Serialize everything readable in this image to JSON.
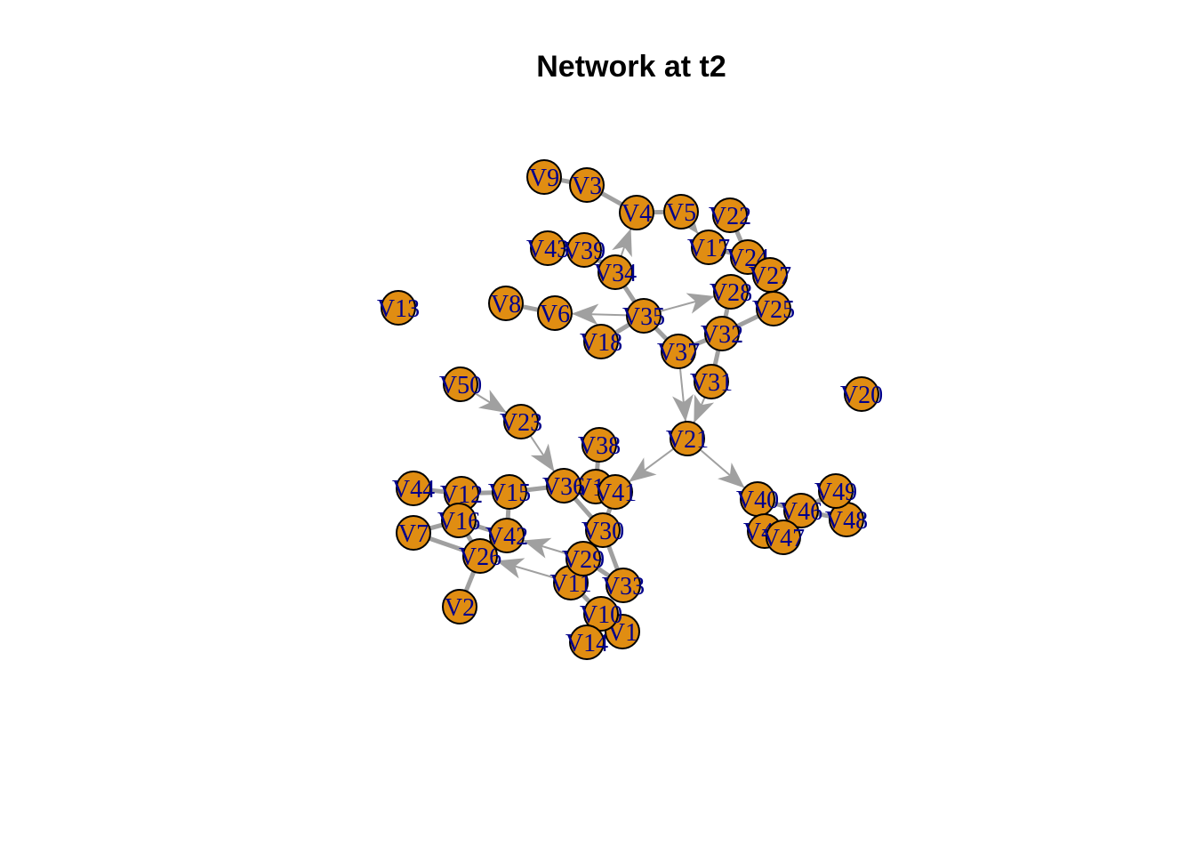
{
  "title": "Network at t2",
  "colors": {
    "node_fill": "#e08d12",
    "node_stroke": "#000000",
    "label": "#00008b",
    "edge": "#a0a0a0"
  },
  "nodes": [
    "V1",
    "V2",
    "V3",
    "V4",
    "V5",
    "V6",
    "V7",
    "V8",
    "V9",
    "V10",
    "V11",
    "V12",
    "V13",
    "V14",
    "V15",
    "V16",
    "V17",
    "V18",
    "V19",
    "V20",
    "V21",
    "V22",
    "V23",
    "V24",
    "V25",
    "V26",
    "V27",
    "V28",
    "V29",
    "V30",
    "V31",
    "V32",
    "V33",
    "V34",
    "V35",
    "V36",
    "V37",
    "V38",
    "V39",
    "V40",
    "V41",
    "V42",
    "V43",
    "V44",
    "V45",
    "V46",
    "V47",
    "V48",
    "V49",
    "V50"
  ],
  "edges": [
    [
      "V9",
      "V3",
      false
    ],
    [
      "V3",
      "V4",
      false
    ],
    [
      "V4",
      "V5",
      false
    ],
    [
      "V5",
      "V17",
      true
    ],
    [
      "V17",
      "V24",
      false
    ],
    [
      "V22",
      "V24",
      false
    ],
    [
      "V24",
      "V27",
      false
    ],
    [
      "V27",
      "V25",
      false
    ],
    [
      "V34",
      "V4",
      true
    ],
    [
      "V34",
      "V35",
      false
    ],
    [
      "V39",
      "V34",
      false
    ],
    [
      "V43",
      "V39",
      false
    ],
    [
      "V35",
      "V6",
      true
    ],
    [
      "V8",
      "V6",
      false
    ],
    [
      "V18",
      "V35",
      false
    ],
    [
      "V35",
      "V28",
      true
    ],
    [
      "V28",
      "V32",
      false
    ],
    [
      "V32",
      "V25",
      false
    ],
    [
      "V35",
      "V37",
      false
    ],
    [
      "V37",
      "V32",
      false
    ],
    [
      "V37",
      "V21",
      true
    ],
    [
      "V31",
      "V21",
      true
    ],
    [
      "V32",
      "V31",
      false
    ],
    [
      "V21",
      "V40",
      true
    ],
    [
      "V21",
      "V41",
      true
    ],
    [
      "V50",
      "V23",
      true
    ],
    [
      "V23",
      "V36",
      true
    ],
    [
      "V38",
      "V19",
      false
    ],
    [
      "V36",
      "V19",
      false
    ],
    [
      "V19",
      "V41",
      false
    ],
    [
      "V41",
      "V30",
      false
    ],
    [
      "V36",
      "V30",
      false
    ],
    [
      "V15",
      "V36",
      false
    ],
    [
      "V44",
      "V12",
      false
    ],
    [
      "V12",
      "V15",
      false
    ],
    [
      "V12",
      "V16",
      false
    ],
    [
      "V16",
      "V42",
      false
    ],
    [
      "V15",
      "V42",
      false
    ],
    [
      "V7",
      "V16",
      false
    ],
    [
      "V7",
      "V26",
      false
    ],
    [
      "V16",
      "V26",
      false
    ],
    [
      "V42",
      "V26",
      false
    ],
    [
      "V2",
      "V26",
      false
    ],
    [
      "V29",
      "V42",
      true
    ],
    [
      "V11",
      "V26",
      true
    ],
    [
      "V30",
      "V29",
      false
    ],
    [
      "V29",
      "V11",
      false
    ],
    [
      "V30",
      "V33",
      false
    ],
    [
      "V29",
      "V33",
      false
    ],
    [
      "V11",
      "V10",
      false
    ],
    [
      "V10",
      "V14",
      false
    ],
    [
      "V10",
      "V1",
      false
    ],
    [
      "V14",
      "V1",
      false
    ],
    [
      "V40",
      "V45",
      false
    ],
    [
      "V45",
      "V47",
      false
    ],
    [
      "V46",
      "V47",
      false
    ],
    [
      "V40",
      "V46",
      false
    ],
    [
      "V46",
      "V49",
      false
    ],
    [
      "V49",
      "V48",
      false
    ],
    [
      "V46",
      "V48",
      false
    ]
  ]
}
